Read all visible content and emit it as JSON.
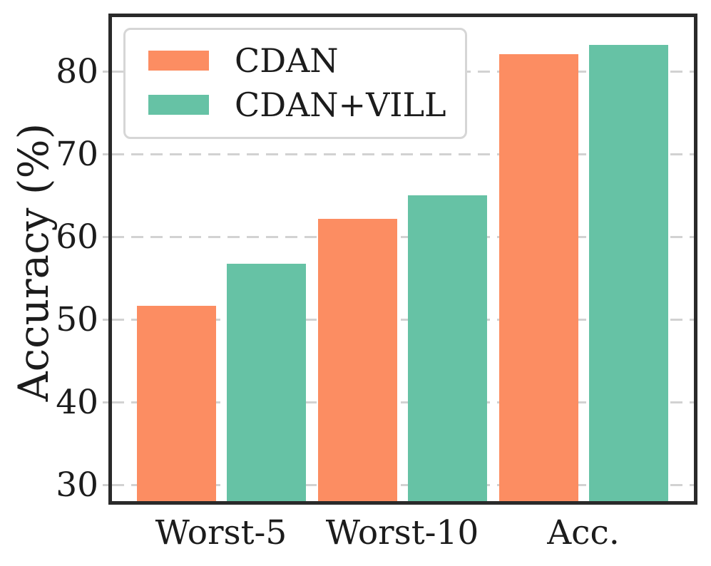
{
  "chart_data": {
    "type": "bar",
    "title": "",
    "categories": [
      "Worst-5",
      "Worst-10",
      "Acc."
    ],
    "series": [
      {
        "name": "CDAN",
        "color": "#fc8d62",
        "values": [
          51.7,
          62.2,
          82.1
        ]
      },
      {
        "name": "CDAN+VILL",
        "color": "#66c2a5",
        "values": [
          56.8,
          65.1,
          83.2
        ]
      }
    ],
    "xlabel": "",
    "ylabel": "Accuracy (%)",
    "yticks": [
      30,
      40,
      50,
      60,
      70,
      80
    ],
    "ylim": [
      28.1,
      86.6
    ],
    "grid": "horizontal-dashed",
    "legend_position": "upper-left"
  },
  "colors": {
    "bar_cdan": "#fc8d62",
    "bar_cdan_vill": "#66c2a5",
    "grid": "#d2d2d2",
    "spine": "#2a2a2a",
    "text": "#1c1c1c",
    "legend_border": "#d6d6d6",
    "background": "#ffffff"
  }
}
